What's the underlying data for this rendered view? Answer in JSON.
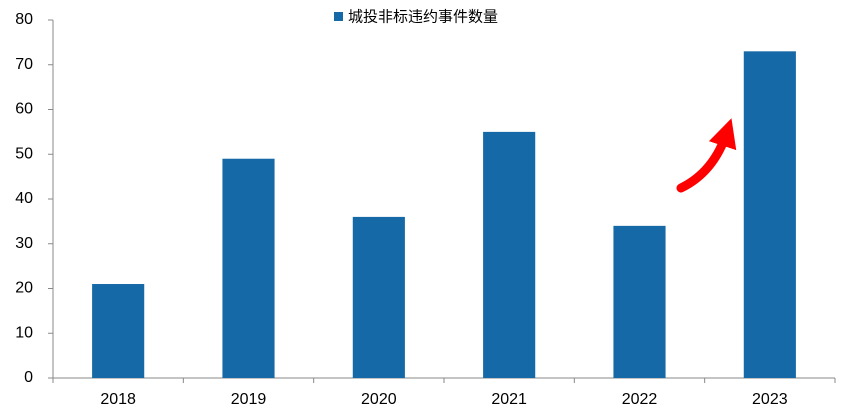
{
  "chart_data": {
    "type": "bar",
    "categories": [
      "2018",
      "2019",
      "2020",
      "2021",
      "2022",
      "2023"
    ],
    "series": [
      {
        "name": "城投非标违约事件数量",
        "color": "#1569a6",
        "values": [
          21,
          49,
          36,
          55,
          34,
          73
        ]
      }
    ],
    "ylim": [
      0,
      80
    ],
    "yticks": [
      0,
      10,
      20,
      30,
      40,
      50,
      60,
      70,
      80
    ],
    "grid": false,
    "legend": "top"
  }
}
